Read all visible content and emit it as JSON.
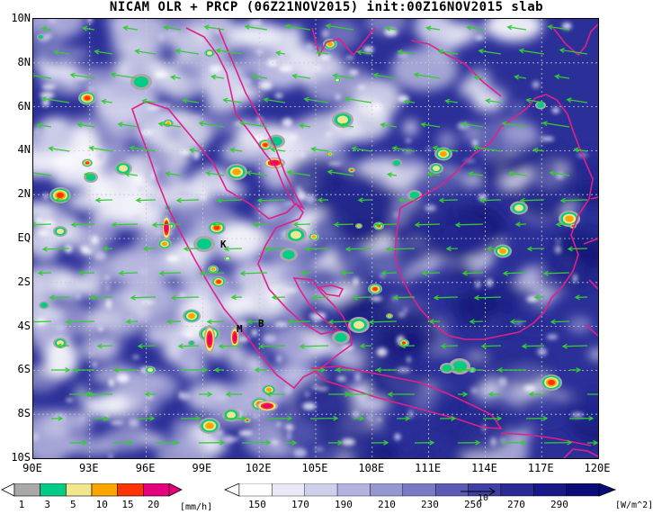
{
  "title": "NICAM OLR + PRCP (06Z21NOV2015) init:00Z16NOV2015 slab",
  "map": {
    "lat_labels": [
      "10N",
      "8N",
      "6N",
      "4N",
      "2N",
      "EQ",
      "2S",
      "4S",
      "6S",
      "8S",
      "10S"
    ],
    "lon_labels": [
      "90E",
      "93E",
      "96E",
      "99E",
      "102E",
      "105E",
      "108E",
      "111E",
      "114E",
      "117E",
      "120E"
    ],
    "lat_range": [
      -10,
      10
    ],
    "lon_range": [
      90,
      120
    ],
    "place_markers": [
      "K",
      "M",
      "B"
    ]
  },
  "colorbars": {
    "precip": {
      "labels": [
        "1",
        "3",
        "5",
        "10",
        "15",
        "20"
      ],
      "unit": "[mm/h]",
      "colors": [
        "#a8a8a8",
        "#00cc88",
        "#f0e68c",
        "#ffa500",
        "#ff3300",
        "#e6007e"
      ]
    },
    "olr": {
      "labels": [
        "150",
        "170",
        "190",
        "210",
        "230",
        "250",
        "270",
        "290"
      ],
      "unit": "[W/m^2]",
      "colors": [
        "#ffffff",
        "#e8e8f6",
        "#cfcfec",
        "#b3b3e0",
        "#9696d2",
        "#7a7ac4",
        "#5c5cb4",
        "#4040a4",
        "#2a2a94",
        "#181886",
        "#0c0c78"
      ]
    }
  },
  "wind_vector_color": "#33cc33",
  "coastline_color": "#e0208a",
  "reference_vector_label": "10"
}
